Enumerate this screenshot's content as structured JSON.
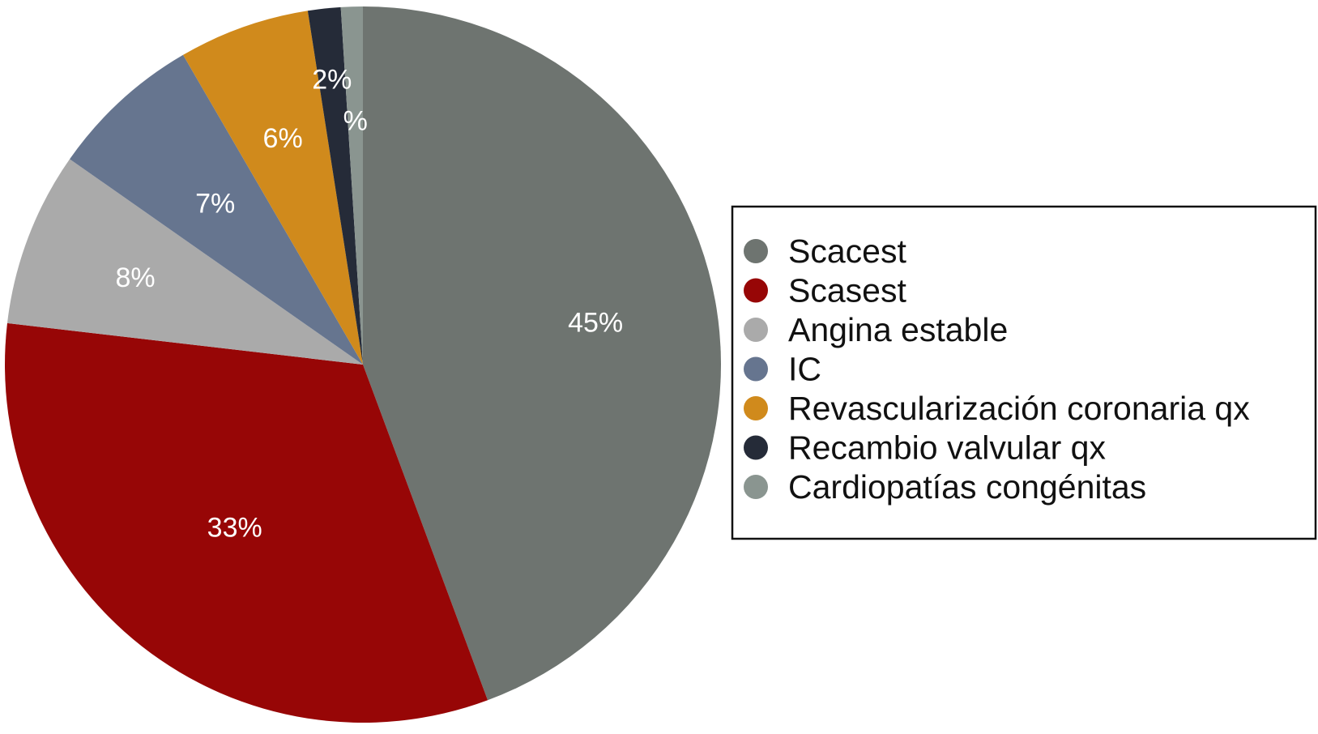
{
  "chart_data": {
    "type": "pie",
    "title": "",
    "legend_position": "right",
    "slices": [
      {
        "name": "Scacest",
        "value": 45,
        "label": "45%",
        "color": "#6e7470"
      },
      {
        "name": "Scasest",
        "value": 33,
        "label": "33%",
        "color": "#970606"
      },
      {
        "name": "Angina estable",
        "value": 8,
        "label": "8%",
        "color": "#aaaaaa"
      },
      {
        "name": "IC",
        "value": 7,
        "label": "7%",
        "color": "#66758f"
      },
      {
        "name": "Revascularización coronaria qx",
        "value": 6,
        "label": "6%",
        "color": "#d08a1c"
      },
      {
        "name": "Recambio valvular qx",
        "value": 1.5,
        "label": "2%",
        "color": "#252b38"
      },
      {
        "name": "Cardiopatías congénitas",
        "value": 1,
        "label": "%",
        "color": "#8a9590"
      }
    ]
  }
}
